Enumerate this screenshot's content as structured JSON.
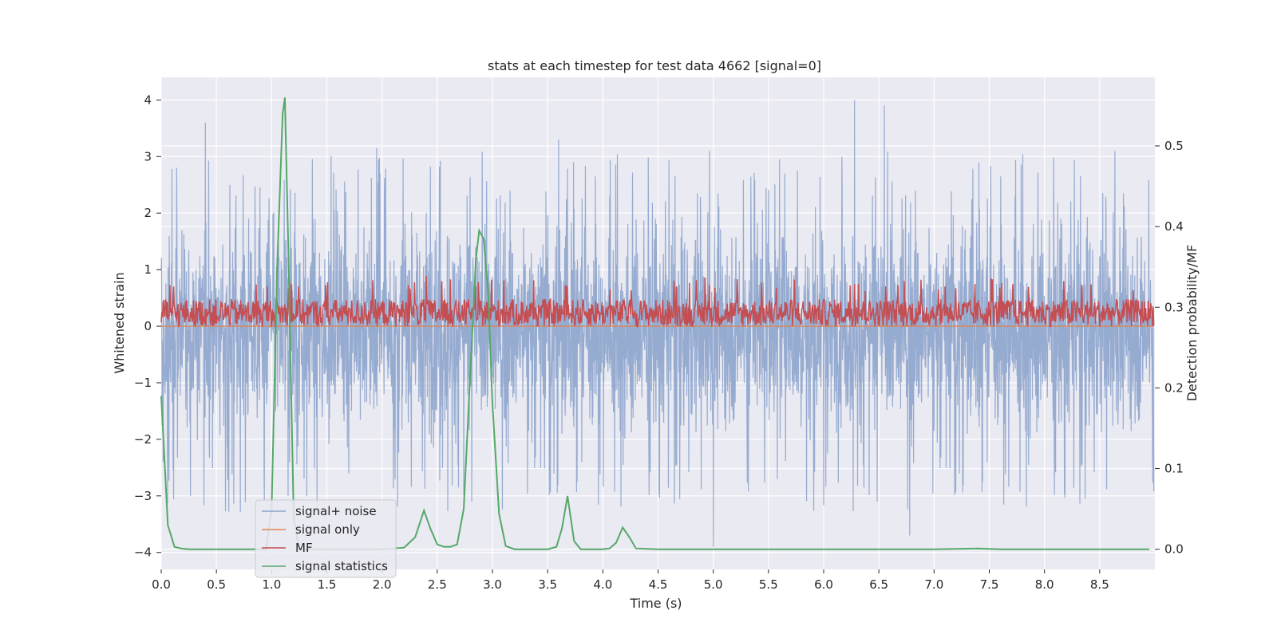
{
  "chart_data": {
    "type": "line",
    "title": "stats at each timestep for test data 4662 [signal=0]",
    "xlabel": "Time (s)",
    "ylabel": "Whitened strain",
    "y2label": "Detection probability/MF",
    "xlim": [
      0.0,
      9.0
    ],
    "ylim": [
      -4.3,
      4.4
    ],
    "y2lim": [
      -0.025,
      0.585
    ],
    "xticks": [
      0.0,
      0.5,
      1.0,
      1.5,
      2.0,
      2.5,
      3.0,
      3.5,
      4.0,
      4.5,
      5.0,
      5.5,
      6.0,
      6.5,
      7.0,
      7.5,
      8.0,
      8.5
    ],
    "xtick_labels": [
      "0.0",
      "0.5",
      "1.0",
      "1.5",
      "2.0",
      "2.5",
      "3.0",
      "3.5",
      "4.0",
      "4.5",
      "5.0",
      "5.5",
      "6.0",
      "6.5",
      "7.0",
      "7.5",
      "8.0",
      "8.5"
    ],
    "yticks": [
      -4,
      -3,
      -2,
      -1,
      0,
      1,
      2,
      3,
      4
    ],
    "ytick_labels": [
      "−4",
      "−3",
      "−2",
      "−1",
      "0",
      "1",
      "2",
      "3",
      "4"
    ],
    "y2ticks": [
      0.0,
      0.1,
      0.2,
      0.3,
      0.4,
      0.5
    ],
    "y2tick_labels": [
      "0.0",
      "0.1",
      "0.2",
      "0.3",
      "0.4",
      "0.5"
    ],
    "grid": true,
    "legend_position": "lower-left",
    "legend": [
      "signal+ noise",
      "signal only",
      "MF",
      "signal statistics"
    ],
    "colors": {
      "noise": "#8da4cc",
      "signal_only": "#dd8452",
      "mf": "#c44e52",
      "stats": "#55a868",
      "plot_bg": "#eaeaf2",
      "grid": "#ffffff"
    },
    "series": [
      {
        "name": "signal+ noise",
        "axis": "left",
        "t_range": [
          0.0,
          8.99
        ],
        "amplitude_band": [
          -2.4,
          2.0
        ],
        "notable_peaks": [
          {
            "t": 0.4,
            "y": 3.6
          },
          {
            "t": 1.15,
            "y": -3.0
          },
          {
            "t": 1.95,
            "y": 3.15
          },
          {
            "t": 3.6,
            "y": 3.3
          },
          {
            "t": 6.28,
            "y": 4.0
          },
          {
            "t": 6.55,
            "y": 3.9
          },
          {
            "t": 5.0,
            "y": -3.9
          },
          {
            "t": 6.78,
            "y": -3.7
          }
        ]
      },
      {
        "name": "signal only",
        "axis": "left",
        "t": [
          0.0,
          8.99
        ],
        "values": [
          0.0,
          0.0
        ]
      },
      {
        "name": "MF",
        "axis": "right",
        "t_range": [
          0.0,
          8.99
        ],
        "band": [
          0.276,
          0.31
        ],
        "peak_values": [
          0.33,
          0.34,
          0.335
        ]
      },
      {
        "name": "signal statistics",
        "axis": "right",
        "t": [
          0.0,
          0.06,
          0.12,
          0.18,
          0.25,
          0.5,
          0.75,
          0.95,
          1.0,
          1.05,
          1.1,
          1.12,
          1.15,
          1.2,
          1.25,
          1.5,
          1.75,
          2.0,
          2.2,
          2.3,
          2.38,
          2.44,
          2.5,
          2.56,
          2.62,
          2.68,
          2.74,
          2.8,
          2.85,
          2.88,
          2.92,
          2.96,
          3.0,
          3.06,
          3.12,
          3.2,
          3.3,
          3.5,
          3.58,
          3.63,
          3.68,
          3.74,
          3.8,
          3.9,
          4.0,
          4.06,
          4.12,
          4.18,
          4.24,
          4.3,
          4.5,
          5.0,
          6.0,
          7.0,
          7.4,
          7.6,
          8.0,
          8.5,
          8.95
        ],
        "values": [
          0.19,
          0.03,
          0.003,
          0.001,
          0.0,
          0.0,
          0.0,
          0.0,
          0.05,
          0.35,
          0.54,
          0.56,
          0.38,
          0.04,
          0.0,
          0.0,
          0.0,
          0.0,
          0.002,
          0.015,
          0.048,
          0.025,
          0.006,
          0.003,
          0.003,
          0.006,
          0.05,
          0.22,
          0.36,
          0.395,
          0.385,
          0.32,
          0.18,
          0.044,
          0.004,
          0.0,
          0.0,
          0.0,
          0.003,
          0.026,
          0.066,
          0.01,
          0.0,
          0.0,
          0.0,
          0.001,
          0.008,
          0.027,
          0.015,
          0.001,
          0.0,
          0.0,
          0.0,
          0.0,
          0.001,
          0.0,
          0.0,
          0.0,
          0.0
        ]
      }
    ]
  }
}
